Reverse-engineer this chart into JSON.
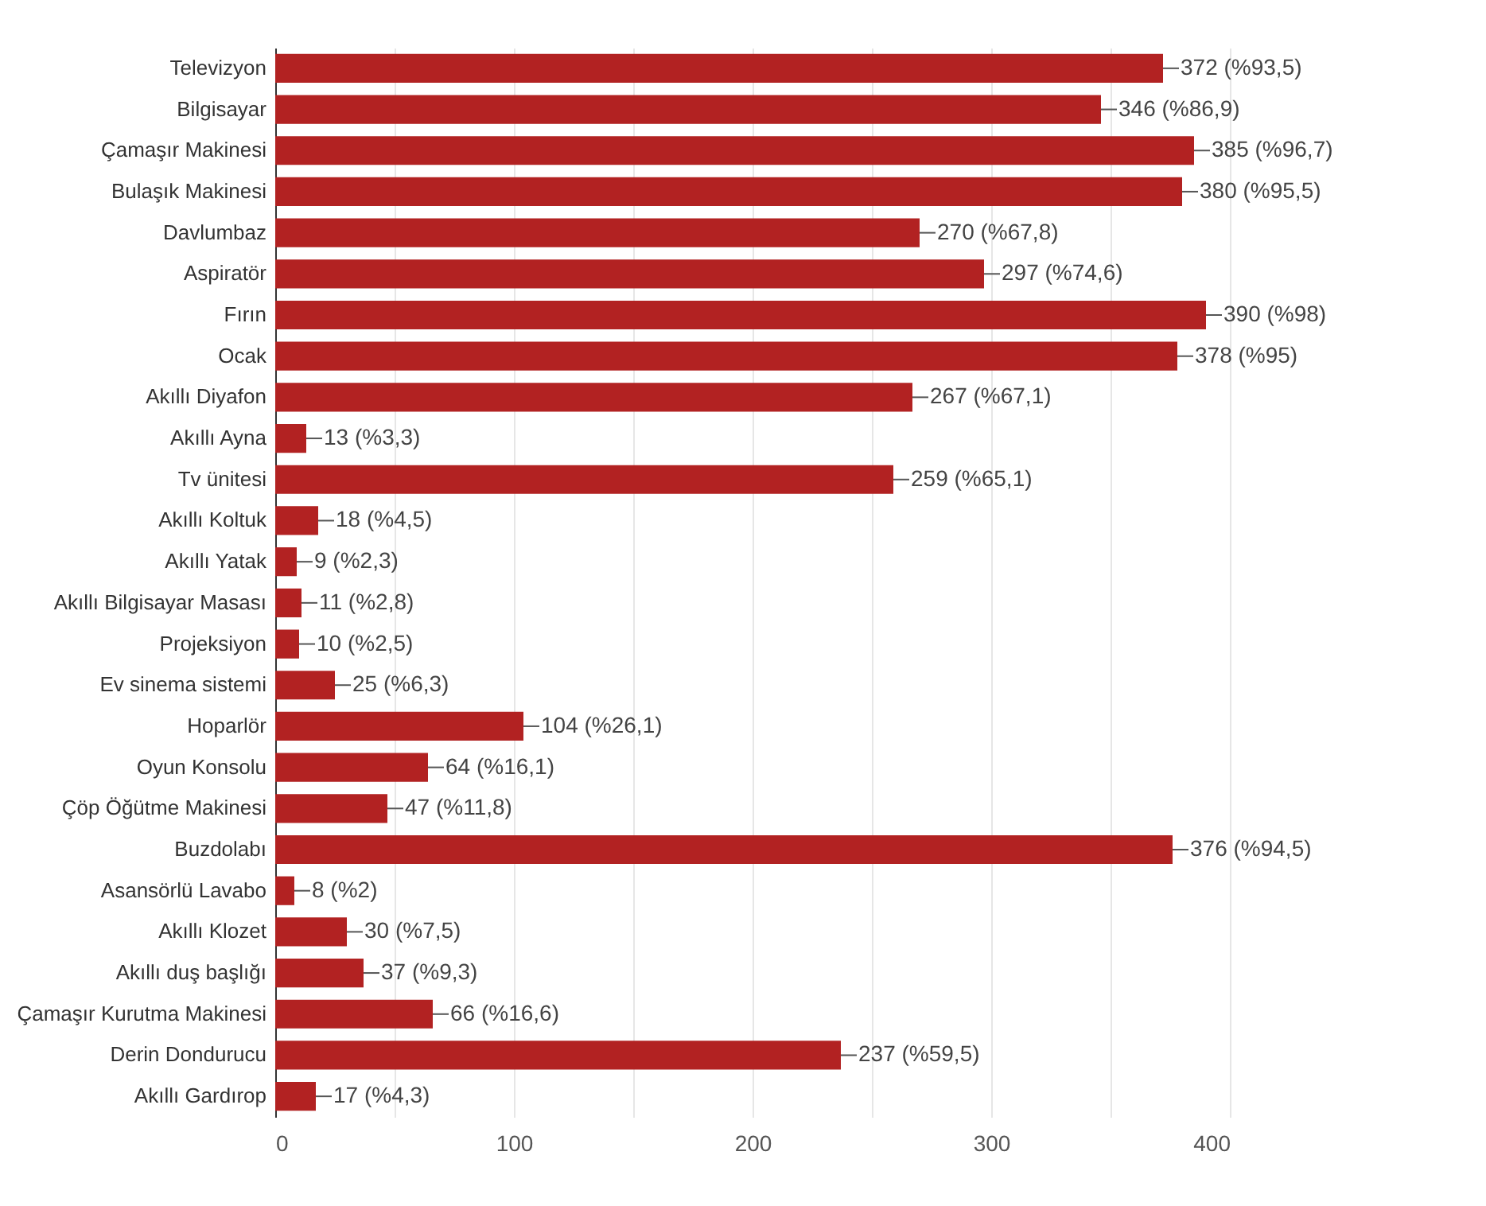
{
  "chart_data": {
    "type": "bar",
    "orientation": "horizontal",
    "categories": [
      "Televizyon",
      "Bilgisayar",
      "Çamaşır Makinesi",
      "Bulaşık Makinesi",
      "Davlumbaz",
      "Aspiratör",
      "Fırın",
      "Ocak",
      "Akıllı Diyafon",
      "Akıllı Ayna",
      "Tv ünitesi",
      "Akıllı Koltuk",
      "Akıllı Yatak",
      "Akıllı Bilgisayar Masası",
      "Projeksiyon",
      "Ev sinema sistemi",
      "Hoparlör",
      "Oyun Konsolu",
      "Çöp Öğütme Makinesi",
      "Buzdolabı",
      "Asansörlü Lavabo",
      "Akıllı Klozet",
      "Akıllı duş başlığı",
      "Çamaşır Kurutma Makinesi",
      "Derin Dondurucu",
      "Akıllı Gardırop"
    ],
    "values": [
      372,
      346,
      385,
      380,
      270,
      297,
      390,
      378,
      267,
      13,
      259,
      18,
      9,
      11,
      10,
      25,
      104,
      64,
      47,
      376,
      8,
      30,
      37,
      66,
      237,
      17
    ],
    "value_labels": [
      "372 (%93,5)",
      "346 (%86,9)",
      "385 (%96,7)",
      "380 (%95,5)",
      "270 (%67,8)",
      "297 (%74,6)",
      "390 (%98)",
      "378 (%95)",
      "267 (%67,1)",
      "13 (%3,3)",
      "259 (%65,1)",
      "18 (%4,5)",
      "9 (%2,3)",
      "11 (%2,8)",
      "10 (%2,5)",
      "25 (%6,3)",
      "104 (%26,1)",
      "64 (%16,1)",
      "47 (%11,8)",
      "376 (%94,5)",
      "8 (%2)",
      "30 (%7,5)",
      "37 (%9,3)",
      "66 (%16,6)",
      "237 (%59,5)",
      "17 (%4,3)"
    ],
    "color": "#b22222",
    "xlim": [
      0,
      400
    ],
    "xticks": [
      0,
      {
        "value": 50,
        "label": null
      },
      100,
      {
        "value": 150,
        "label": null
      },
      200,
      {
        "value": 250,
        "label": null
      },
      300,
      {
        "value": 350,
        "label": null
      },
      400
    ],
    "grid": true
  }
}
